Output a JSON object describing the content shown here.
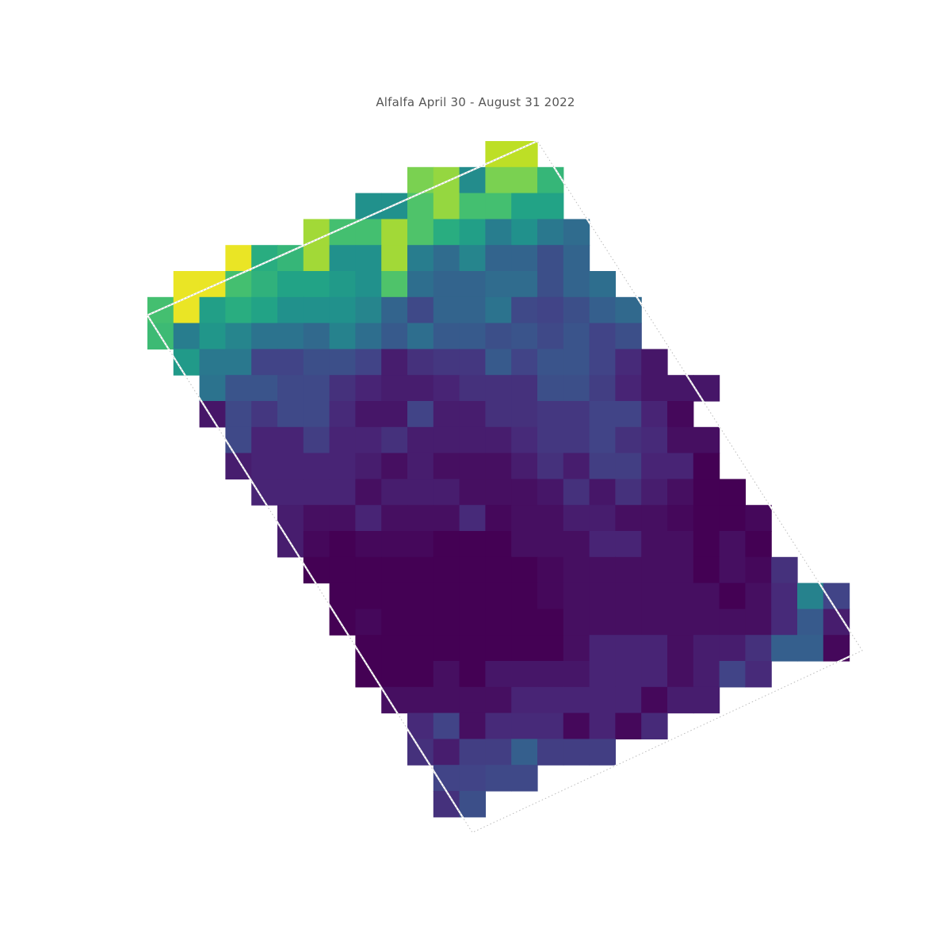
{
  "title": "Alfalfa April 30 - August 31 2022",
  "colormap": "viridis",
  "field_rows": [
    {
      "row": 0,
      "start_col": 13,
      "levels": [
        0.9,
        0.9
      ]
    },
    {
      "row": 1,
      "start_col": 10,
      "levels": [
        0.8,
        0.84,
        0.48,
        0.8,
        0.8,
        0.66
      ]
    },
    {
      "row": 2,
      "start_col": 8,
      "levels": [
        0.5,
        0.5,
        0.72,
        0.84,
        0.7,
        0.7,
        0.58,
        0.58
      ]
    },
    {
      "row": 3,
      "start_col": 6,
      "levels": [
        0.86,
        0.7,
        0.7,
        0.86,
        0.72,
        0.62,
        0.56,
        0.42,
        0.5,
        0.4,
        0.35
      ]
    },
    {
      "row": 4,
      "start_col": 3,
      "levels": [
        0.97,
        0.62,
        0.66,
        0.86,
        0.5,
        0.5,
        0.86,
        0.42,
        0.35,
        0.45,
        0.32,
        0.32,
        0.24,
        0.32
      ]
    },
    {
      "row": 5,
      "start_col": 1,
      "levels": [
        0.97,
        0.97,
        0.7,
        0.64,
        0.58,
        0.58,
        0.54,
        0.5,
        0.72,
        0.36,
        0.32,
        0.32,
        0.35,
        0.35,
        0.24,
        0.32,
        0.36
      ]
    },
    {
      "row": 6,
      "start_col": 0,
      "levels": [
        0.7,
        0.97,
        0.56,
        0.62,
        0.58,
        0.5,
        0.5,
        0.5,
        0.45,
        0.32,
        0.22,
        0.32,
        0.32,
        0.38,
        0.22,
        0.2,
        0.24,
        0.3,
        0.34
      ]
    },
    {
      "row": 7,
      "start_col": 0,
      "levels": [
        0.68,
        0.42,
        0.52,
        0.45,
        0.38,
        0.38,
        0.34,
        0.44,
        0.36,
        0.28,
        0.36,
        0.28,
        0.28,
        0.24,
        0.26,
        0.22,
        0.26,
        0.2,
        0.24
      ]
    },
    {
      "row": 8,
      "start_col": 1,
      "levels": [
        0.54,
        0.4,
        0.4,
        0.2,
        0.2,
        0.24,
        0.24,
        0.2,
        0.08,
        0.14,
        0.16,
        0.16,
        0.28,
        0.2,
        0.26,
        0.26,
        0.2,
        0.12,
        0.06
      ]
    },
    {
      "row": 9,
      "start_col": 2,
      "levels": [
        0.38,
        0.26,
        0.26,
        0.22,
        0.22,
        0.14,
        0.1,
        0.08,
        0.08,
        0.1,
        0.14,
        0.14,
        0.14,
        0.24,
        0.24,
        0.18,
        0.1,
        0.06,
        0.06,
        0.06
      ]
    },
    {
      "row": 10,
      "start_col": 2,
      "levels": [
        0.06,
        0.22,
        0.16,
        0.22,
        0.22,
        0.12,
        0.06,
        0.06,
        0.2,
        0.08,
        0.08,
        0.14,
        0.14,
        0.16,
        0.16,
        0.2,
        0.2,
        0.1,
        0.02
      ]
    },
    {
      "row": 11,
      "start_col": 3,
      "levels": [
        0.22,
        0.1,
        0.1,
        0.18,
        0.1,
        0.1,
        0.14,
        0.08,
        0.08,
        0.08,
        0.08,
        0.12,
        0.16,
        0.16,
        0.2,
        0.14,
        0.12,
        0.04,
        0.04
      ]
    },
    {
      "row": 12,
      "start_col": 3,
      "levels": [
        0.08,
        0.1,
        0.1,
        0.1,
        0.1,
        0.08,
        0.04,
        0.08,
        0.04,
        0.04,
        0.04,
        0.08,
        0.14,
        0.08,
        0.18,
        0.18,
        0.1,
        0.1,
        0.0
      ]
    },
    {
      "row": 13,
      "start_col": 4,
      "levels": [
        0.1,
        0.1,
        0.1,
        0.1,
        0.04,
        0.08,
        0.08,
        0.08,
        0.04,
        0.04,
        0.04,
        0.06,
        0.14,
        0.06,
        0.14,
        0.08,
        0.04,
        0.0,
        0.0
      ]
    },
    {
      "row": 14,
      "start_col": 5,
      "levels": [
        0.08,
        0.04,
        0.04,
        0.1,
        0.04,
        0.04,
        0.04,
        0.12,
        0.02,
        0.04,
        0.04,
        0.08,
        0.08,
        0.04,
        0.04,
        0.02,
        0.0,
        0.0,
        0.02
      ]
    },
    {
      "row": 15,
      "start_col": 5,
      "levels": [
        0.08,
        0.02,
        0.0,
        0.02,
        0.02,
        0.02,
        0.0,
        0.0,
        0.0,
        0.04,
        0.04,
        0.04,
        0.1,
        0.1,
        0.04,
        0.04,
        0.0,
        0.04,
        0.0
      ]
    },
    {
      "row": 16,
      "start_col": 6,
      "levels": [
        0.0,
        0.0,
        0.0,
        0.0,
        0.0,
        0.0,
        0.0,
        0.0,
        0.0,
        0.02,
        0.04,
        0.04,
        0.04,
        0.04,
        0.04,
        0.0,
        0.04,
        0.02,
        0.14
      ]
    },
    {
      "row": 17,
      "start_col": 7,
      "levels": [
        0.0,
        0.0,
        0.0,
        0.0,
        0.0,
        0.0,
        0.0,
        0.0,
        0.02,
        0.04,
        0.04,
        0.04,
        0.04,
        0.04,
        0.04,
        0.0,
        0.04,
        0.12,
        0.44,
        0.2
      ]
    },
    {
      "row": 18,
      "start_col": 7,
      "levels": [
        0.0,
        0.02,
        0.0,
        0.0,
        0.0,
        0.0,
        0.0,
        0.0,
        0.0,
        0.04,
        0.04,
        0.04,
        0.04,
        0.04,
        0.04,
        0.04,
        0.04,
        0.12,
        0.28,
        0.08
      ]
    },
    {
      "row": 19,
      "start_col": 8,
      "levels": [
        0.0,
        0.0,
        0.0,
        0.0,
        0.0,
        0.0,
        0.0,
        0.0,
        0.04,
        0.1,
        0.1,
        0.1,
        0.04,
        0.08,
        0.08,
        0.14,
        0.3,
        0.3,
        0.02
      ]
    },
    {
      "row": 20,
      "start_col": 8,
      "levels": [
        0.0,
        0.0,
        0.0,
        0.04,
        0.0,
        0.06,
        0.06,
        0.06,
        0.06,
        0.1,
        0.1,
        0.1,
        0.04,
        0.08,
        0.2,
        0.12
      ]
    },
    {
      "row": 21,
      "start_col": 9,
      "levels": [
        0.04,
        0.04,
        0.04,
        0.04,
        0.04,
        0.1,
        0.1,
        0.1,
        0.1,
        0.1,
        0.02,
        0.08,
        0.08
      ]
    },
    {
      "row": 22,
      "start_col": 10,
      "levels": [
        0.12,
        0.2,
        0.04,
        0.12,
        0.12,
        0.12,
        0.02,
        0.1,
        0.02,
        0.12
      ]
    },
    {
      "row": 23,
      "start_col": 10,
      "levels": [
        0.14,
        0.08,
        0.18,
        0.18,
        0.3,
        0.18,
        0.18,
        0.18
      ]
    },
    {
      "row": 24,
      "start_col": 11,
      "levels": [
        0.2,
        0.2,
        0.22,
        0.22
      ]
    },
    {
      "row": 25,
      "start_col": 11,
      "levels": [
        0.14,
        0.24
      ]
    }
  ],
  "field_boundary": [
    {
      "lon": 0.0,
      "lat": 6.7
    },
    {
      "lon": 15.0,
      "lat": 0.0
    },
    {
      "lon": 27.5,
      "lat": 19.6
    },
    {
      "lon": 12.5,
      "lat": 26.6
    }
  ]
}
